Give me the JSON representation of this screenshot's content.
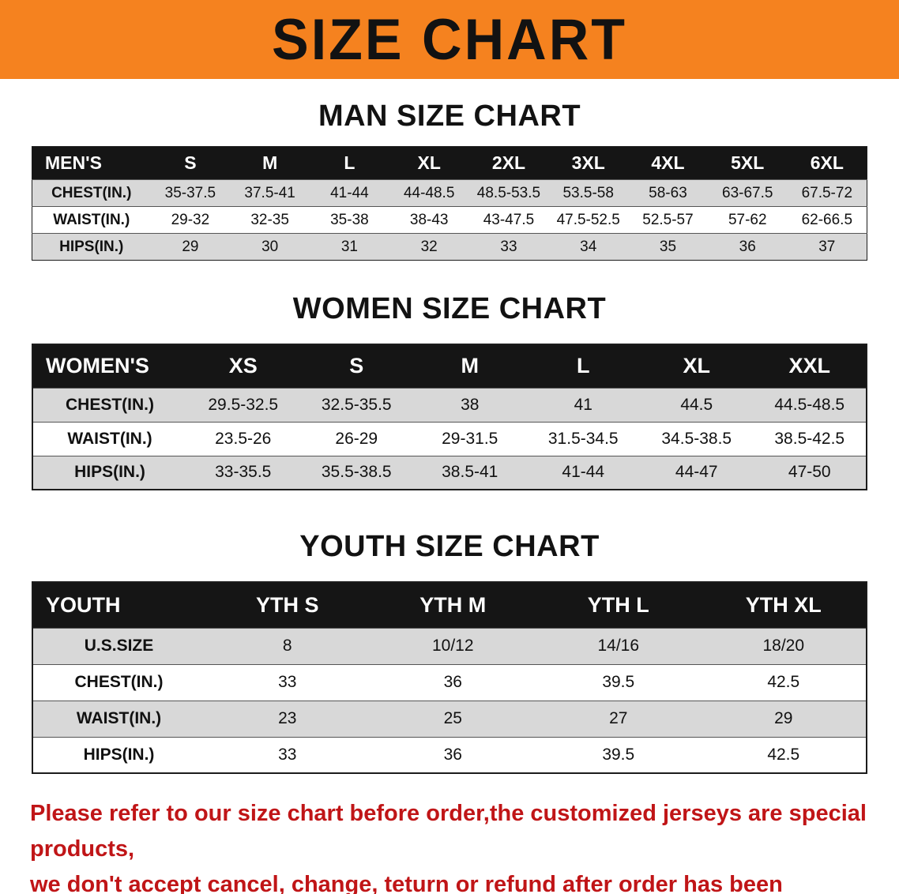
{
  "banner": {
    "title": "SIZE CHART"
  },
  "colors": {
    "banner_bg": "#F5821F",
    "header_bg": "#151515",
    "stripe": "#D8D8D8",
    "notice_red": "#C01517"
  },
  "sections": [
    {
      "heading": "MAN SIZE CHART",
      "table": {
        "header": [
          "MEN'S",
          "S",
          "M",
          "L",
          "XL",
          "2XL",
          "3XL",
          "4XL",
          "5XL",
          "6XL"
        ],
        "rows": [
          {
            "label": "CHEST(IN.)",
            "values": [
              "35-37.5",
              "37.5-41",
              "41-44",
              "44-48.5",
              "48.5-53.5",
              "53.5-58",
              "58-63",
              "63-67.5",
              "67.5-72"
            ]
          },
          {
            "label": "WAIST(IN.)",
            "values": [
              "29-32",
              "32-35",
              "35-38",
              "38-43",
              "43-47.5",
              "47.5-52.5",
              "52.5-57",
              "57-62",
              "62-66.5"
            ]
          },
          {
            "label": "HIPS(IN.)",
            "values": [
              "29",
              "30",
              "31",
              "32",
              "33",
              "34",
              "35",
              "36",
              "37"
            ]
          }
        ]
      }
    },
    {
      "heading": "WOMEN SIZE CHART",
      "table": {
        "header": [
          "WOMEN'S",
          "XS",
          "S",
          "M",
          "L",
          "XL",
          "XXL"
        ],
        "rows": [
          {
            "label": "CHEST(IN.)",
            "values": [
              "29.5-32.5",
              "32.5-35.5",
              "38",
              "41",
              "44.5",
              "44.5-48.5"
            ]
          },
          {
            "label": "WAIST(IN.)",
            "values": [
              "23.5-26",
              "26-29",
              "29-31.5",
              "31.5-34.5",
              "34.5-38.5",
              "38.5-42.5"
            ]
          },
          {
            "label": "HIPS(IN.)",
            "values": [
              "33-35.5",
              "35.5-38.5",
              "38.5-41",
              "41-44",
              "44-47",
              "47-50"
            ]
          }
        ]
      }
    },
    {
      "heading": "YOUTH SIZE CHART",
      "table": {
        "header": [
          "YOUTH",
          "YTH S",
          "YTH M",
          "YTH L",
          "YTH XL"
        ],
        "rows": [
          {
            "label": "U.S.SIZE",
            "values": [
              "8",
              "10/12",
              "14/16",
              "18/20"
            ]
          },
          {
            "label": "CHEST(IN.)",
            "values": [
              "33",
              "36",
              "39.5",
              "42.5"
            ]
          },
          {
            "label": "WAIST(IN.)",
            "values": [
              "23",
              "25",
              "27",
              "29"
            ]
          },
          {
            "label": "HIPS(IN.)",
            "values": [
              "33",
              "36",
              "39.5",
              "42.5"
            ]
          }
        ]
      }
    }
  ],
  "notice": {
    "line1": "Please refer to our size chart before order,the customized jerseys are special products,",
    "line2": "we don't accept cancel, change, teturn or refund after order has been placed!"
  }
}
